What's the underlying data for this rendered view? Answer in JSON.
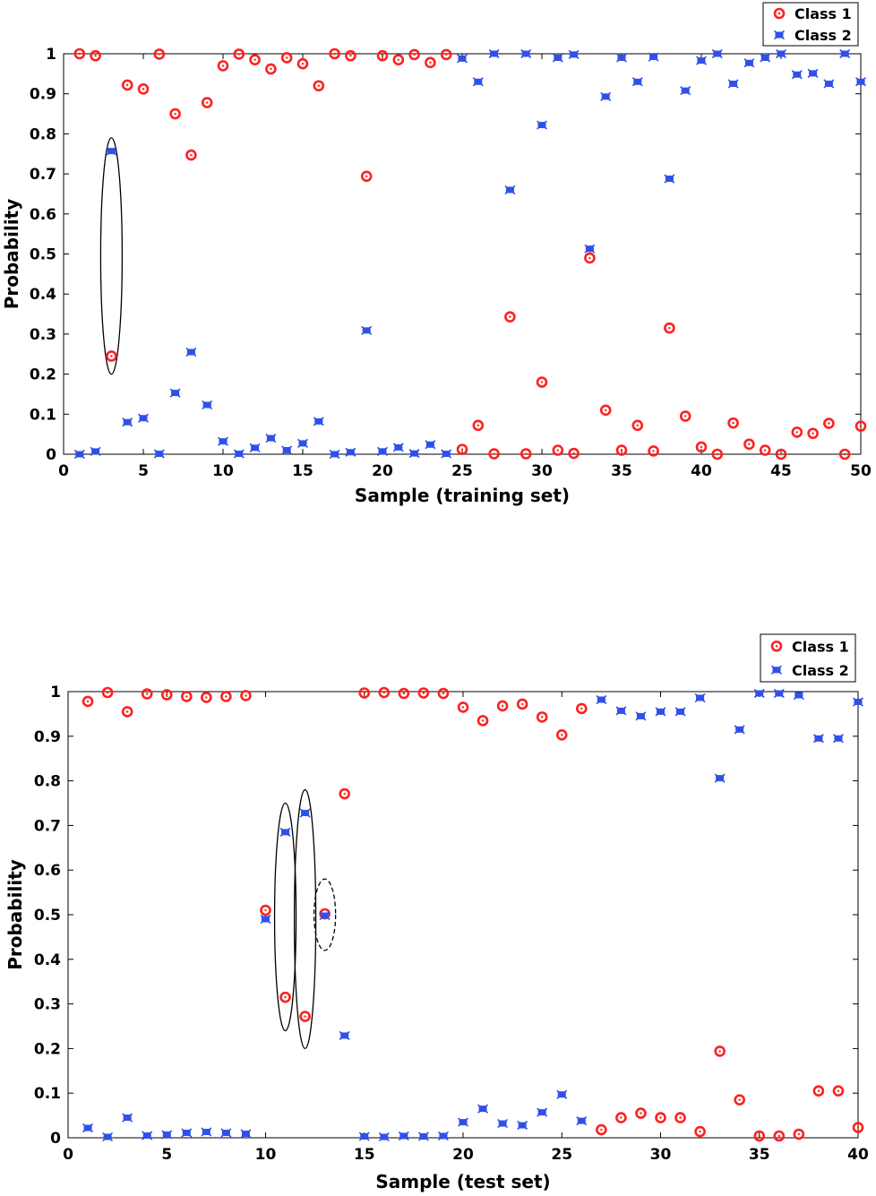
{
  "chart_data": [
    {
      "type": "scatter",
      "xlabel": "Sample (training set)",
      "ylabel": "Probability",
      "xlim": [
        0,
        50
      ],
      "ylim": [
        0,
        1
      ],
      "x_ticks": [
        0,
        5,
        10,
        15,
        20,
        25,
        30,
        35,
        40,
        45,
        50
      ],
      "y_ticks": [
        0,
        0.1,
        0.2,
        0.3,
        0.4,
        0.5,
        0.6,
        0.7,
        0.8,
        0.9,
        1
      ],
      "legend_position": "top-right",
      "x": [
        1,
        2,
        3,
        4,
        5,
        6,
        7,
        8,
        9,
        10,
        11,
        12,
        13,
        14,
        15,
        16,
        17,
        18,
        19,
        20,
        21,
        22,
        23,
        24,
        25,
        26,
        27,
        28,
        29,
        30,
        31,
        32,
        33,
        34,
        35,
        36,
        37,
        38,
        39,
        40,
        41,
        42,
        43,
        44,
        45,
        46,
        47,
        48,
        49,
        50
      ],
      "series": [
        {
          "name": "Class 1",
          "color": "#ff2020",
          "marker": "circle",
          "values": [
            1.0,
            0.995,
            0.245,
            0.922,
            0.912,
            0.999,
            0.85,
            0.747,
            0.878,
            0.97,
            0.999,
            0.985,
            0.962,
            0.99,
            0.975,
            0.92,
            1.0,
            0.995,
            0.694,
            0.995,
            0.985,
            0.998,
            0.978,
            0.998,
            0.012,
            0.072,
            0.001,
            0.343,
            0.001,
            0.18,
            0.01,
            0.002,
            0.49,
            0.11,
            0.01,
            0.072,
            0.008,
            0.315,
            0.095,
            0.018,
            0.0,
            0.078,
            0.025,
            0.01,
            0.0,
            0.055,
            0.052,
            0.077,
            0.0,
            0.07
          ]
        },
        {
          "name": "Class 2",
          "color": "#3050e8",
          "marker": "star",
          "values": [
            0.0,
            0.007,
            0.757,
            0.08,
            0.09,
            0.001,
            0.153,
            0.255,
            0.123,
            0.032,
            0.001,
            0.016,
            0.04,
            0.01,
            0.027,
            0.082,
            0.0,
            0.005,
            0.309,
            0.007,
            0.017,
            0.002,
            0.024,
            0.001,
            0.988,
            0.93,
            1.0,
            0.66,
            1.0,
            0.822,
            0.99,
            0.998,
            0.513,
            0.893,
            0.99,
            0.93,
            0.992,
            0.688,
            0.908,
            0.983,
            1.0,
            0.925,
            0.977,
            0.99,
            1.0,
            0.948,
            0.951,
            0.925,
            1.0,
            0.93
          ]
        }
      ],
      "annotations": [
        {
          "shape": "ellipse",
          "style": "solid",
          "x": 3,
          "y_range": [
            0.2,
            0.79
          ]
        }
      ]
    },
    {
      "type": "scatter",
      "xlabel": "Sample (test set)",
      "ylabel": "Probability",
      "xlim": [
        0,
        40
      ],
      "ylim": [
        0,
        1
      ],
      "x_ticks": [
        0,
        5,
        10,
        15,
        20,
        25,
        30,
        35,
        40
      ],
      "y_ticks": [
        0,
        0.1,
        0.2,
        0.3,
        0.4,
        0.5,
        0.6,
        0.7,
        0.8,
        0.9,
        1
      ],
      "legend_position": "top-right",
      "x": [
        1,
        2,
        3,
        4,
        5,
        6,
        7,
        8,
        9,
        10,
        11,
        12,
        13,
        14,
        15,
        16,
        17,
        18,
        19,
        20,
        21,
        22,
        23,
        24,
        25,
        26,
        27,
        28,
        29,
        30,
        31,
        32,
        33,
        34,
        35,
        36,
        37,
        38,
        39,
        40
      ],
      "series": [
        {
          "name": "Class 1",
          "color": "#ff2020",
          "marker": "circle",
          "values": [
            0.978,
            0.998,
            0.955,
            0.995,
            0.993,
            0.989,
            0.987,
            0.989,
            0.991,
            0.51,
            0.315,
            0.272,
            0.502,
            0.771,
            0.997,
            0.998,
            0.996,
            0.997,
            0.996,
            0.965,
            0.935,
            0.968,
            0.972,
            0.943,
            0.903,
            0.962,
            0.018,
            0.045,
            0.055,
            0.045,
            0.045,
            0.014,
            0.194,
            0.085,
            0.004,
            0.004,
            0.008,
            0.105,
            0.105,
            0.023
          ]
        },
        {
          "name": "Class 2",
          "color": "#3050e8",
          "marker": "star",
          "values": [
            0.022,
            0.002,
            0.045,
            0.005,
            0.007,
            0.011,
            0.013,
            0.011,
            0.009,
            0.49,
            0.685,
            0.728,
            0.498,
            0.229,
            0.003,
            0.002,
            0.004,
            0.003,
            0.004,
            0.035,
            0.065,
            0.032,
            0.028,
            0.057,
            0.097,
            0.038,
            0.982,
            0.957,
            0.945,
            0.955,
            0.955,
            0.986,
            0.806,
            0.915,
            0.996,
            0.996,
            0.992,
            0.895,
            0.895,
            0.977
          ]
        }
      ],
      "annotations": [
        {
          "shape": "ellipse",
          "style": "solid",
          "x": 11,
          "y_range": [
            0.24,
            0.75
          ]
        },
        {
          "shape": "ellipse",
          "style": "solid",
          "x": 12,
          "y_range": [
            0.2,
            0.78
          ]
        },
        {
          "shape": "ellipse",
          "style": "dashed",
          "x": 13,
          "y_range": [
            0.42,
            0.58
          ]
        }
      ]
    }
  ]
}
